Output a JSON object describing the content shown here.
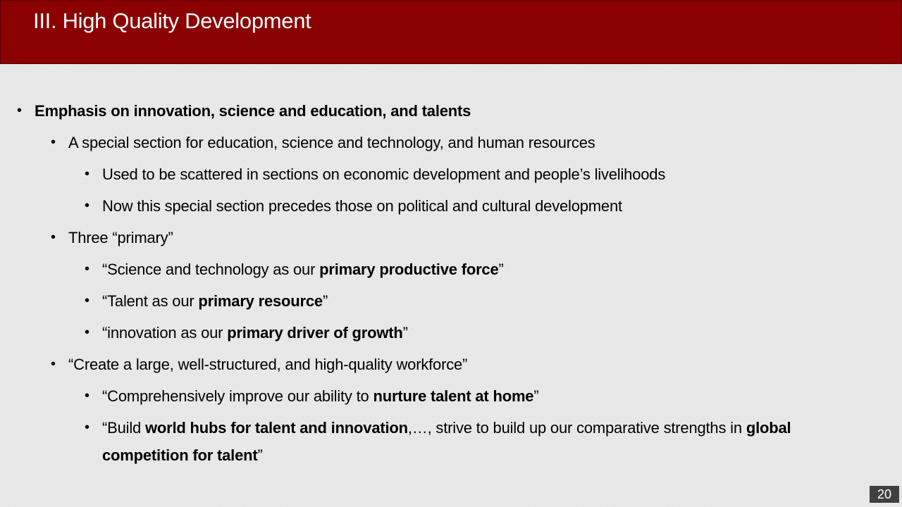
{
  "slide": {
    "title": "III. High Quality Development",
    "page_number": "20"
  },
  "bullets": {
    "b1": {
      "bold": "Emphasis on innovation, science and education, and talents"
    },
    "b1_1": {
      "text": "A special section for education, science and technology, and human resources"
    },
    "b1_1_1": {
      "text": "Used to be scattered in sections on economic development and people’s livelihoods"
    },
    "b1_1_2": {
      "text": "Now this special section precedes those on political and cultural development"
    },
    "b1_2": {
      "text": "Three “primary”"
    },
    "b1_2_1": {
      "pre": "“Science and technology as our ",
      "bold": "primary productive force",
      "post": "”"
    },
    "b1_2_2": {
      "pre": "“Talent as our ",
      "bold": "primary resource",
      "post": "”"
    },
    "b1_2_3": {
      "pre": "“innovation as our ",
      "bold": "primary driver of growth",
      "post": "”"
    },
    "b1_3": {
      "text": "“Create a large, well-structured, and high-quality workforce”"
    },
    "b1_3_1": {
      "pre": "“Comprehensively improve our ability to ",
      "bold": "nurture talent at home",
      "post": "”"
    },
    "b1_3_2": {
      "pre": "“Build ",
      "bold1": "world hubs for talent and innovation",
      "mid": ",…, strive to build up our comparative strengths in ",
      "bold2": "global competition for talent",
      "post": "”"
    }
  }
}
